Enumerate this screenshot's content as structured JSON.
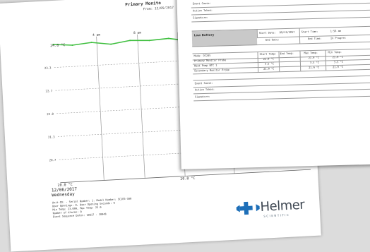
{
  "chart_page": {
    "title": "Primary Monito",
    "subtitle": "From: 12/05/2017",
    "footer_date": "12/06/2017",
    "footer_day": "Wednesday",
    "info_lines": [
      "Unit-ID: - Serial Number: 1. Model Number: SC1E5-380",
      "Door Openings: 8, Door Opening Seconds: 9",
      "Min Temp: 23.099, Max Temp: 23.9",
      "Number of Alarms: 0",
      "Event Sequence Dates: 10617 - 10948"
    ],
    "logo_text": "Helmer",
    "logo_tagline": "SCIENTIFIC"
  },
  "chart_data": {
    "type": "line",
    "x_tick_labels": [
      "4 am",
      "8 am"
    ],
    "y_tick_labels": [
      "23.3",
      "22.7",
      "22.0",
      "21.3",
      "20.7"
    ],
    "annotations": [
      "24.0 °C",
      "20.0 °C",
      "20.0 °C"
    ],
    "series": [
      {
        "values": [
          24.0,
          23.95,
          24.0,
          23.92,
          24.0,
          23.97,
          24.0,
          23.9,
          24.0,
          23.96,
          24.0,
          23.93,
          24.0,
          23.98
        ]
      }
    ],
    "colors": {
      "series": "#3fbf3f",
      "grid": "#999999"
    }
  },
  "table_page": {
    "top_rows": [
      "Event Cause:",
      "Action Taken:",
      "Signature:"
    ],
    "section_title": "Low Battery",
    "start_date_label": "Start Date:",
    "start_date_value": "09/12/2017",
    "start_time_label": "Start Time:",
    "start_time_value": "1:56 am",
    "end_date_label": "End Date:",
    "end_time_label": "End Time:",
    "end_time_value": "In Progres",
    "columns": [
      "Mode: DC245",
      "Start Temp:",
      "End Temp:",
      "Max Temp:",
      "Min Temp:"
    ],
    "rows": [
      [
        "Primary Monitor Probe",
        "21.9 °C",
        "",
        "21.9 °C",
        "21.9 °C"
      ],
      [
        "Heat Pump NTC 1",
        "3.5 °C",
        "",
        "3.5 °C",
        "3.5 °C"
      ],
      [
        "Secondary Monitor Probe",
        "21.9 °C",
        "",
        "21.9 °C",
        "21.9 °C"
      ]
    ],
    "bottom_rows": [
      "Event Cause:",
      "Action Taken:",
      "Signature:"
    ]
  }
}
